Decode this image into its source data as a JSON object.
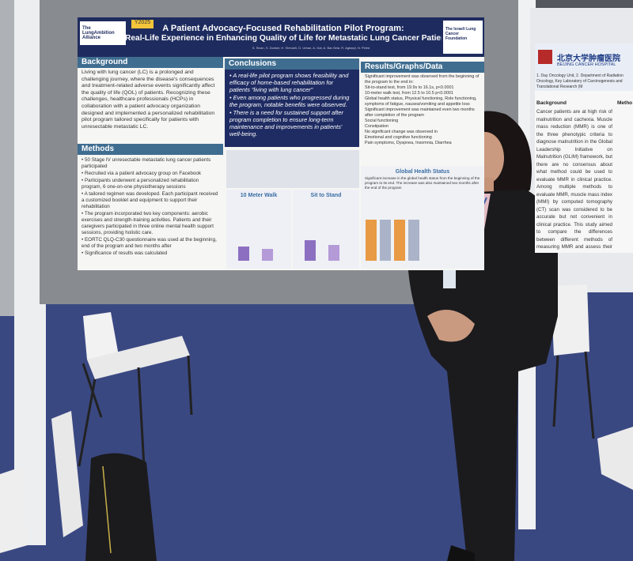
{
  "poster": {
    "tag": "Y2025",
    "logo_left": "The LungAmbition Alliance",
    "logo_right": "The Israeli Lung Cancer Foundation",
    "title_line1": "A Patient Advocacy-Focused Rehabilitation Pilot Program:",
    "title_line2": "Real-Life Experience in Enhancing Quality of Life for Metastatic Lung Cancer Patients.",
    "authors": "S. Sivan, S. Dunkel, H. Shmueli, D. Urban, A. Gat, A. Bar-Sela, R. Agbaryi, N. Peled",
    "background": {
      "heading": "Background",
      "text": "Living with lung cancer (LC) is a prolonged and challenging journey, where the disease's consequences and treatment-related adverse events significantly affect the quality of life (QOL) of patients. Recognizing these challenges, healthcare professionals (HCPs) in collaboration with a patient advocacy organization designed and implemented a personalized rehabilitation pilot program tailored specifically for patients with unresectable metastatic LC."
    },
    "methods": {
      "heading": "Methods",
      "items": [
        "50 Stage IV unresectable metastatic lung cancer patients participated",
        "Recruited via a patient advocacy group on Facebook",
        "Participants underwent a personalized rehabilitation program, 6 one-on-one physiotherapy sessions",
        "A tailored regimen was developed. Each participant received a customized booklet and equipment to support their rehabilitation",
        "The program incorporated two key components: aerobic exercises and strength-training activities. Patients and their caregivers participated in three online mental health support sessions, providing holistic care.",
        "EORTC QLQ-C30 questionnaire was used at the beginning, end of the program and two months after",
        "Significance of results was calculated"
      ]
    },
    "conclusions": {
      "heading": "Conclusions",
      "items": [
        "A real-life pilot program shows feasibility and efficacy of home-based rehabilitation for patients “living with lung cancer”",
        "Even among patients who progressed during the program, notable benefits were observed.",
        "There is a need for sustained support after program completion to ensure long-term maintenance and improvements in patients' well-being."
      ]
    },
    "results": {
      "heading": "Results/Graphs/Data",
      "lines": [
        "Significant improvement was observed from the beginning of the program to the end in:",
        "Sit-to-stand test, from 19.9s to 16.1s, p<0.0001",
        "10-meter walk test, from 12.5 to 10.5 p<0.0001",
        "Global health status, Physical functioning, Role functioning, symptoms of fatigue, nausea/vomiting and appetite loss",
        "Significant improvement was maintained even two months after completion of the program",
        "Social functioning",
        "Constipation",
        "No significant change was observed in",
        "Emotional and cognitive functioning",
        "Pain symptoms, Dyspnea, Insomnia, Diarrhea"
      ],
      "chart_title": "Global Health Status",
      "chart_note": "Significant increase in the global health status from the beginning of the program to its end. The increase was also maintained two months after the end of the program"
    },
    "chart_walk": "10 Meter Walk",
    "chart_sit": "Sit to Stand"
  },
  "neighbor_poster": {
    "hospital_cn": "北京大学肿瘤医院",
    "hospital_en": "BEIJING CANCER HOSPITAL",
    "affiliation": "1. Day Oncology Unit, 2. Department of Radiation Oncology, Key Laboratory of Carcinogenesis and Translational Research (M",
    "heading_background": "Background",
    "heading_methods": "Metho",
    "text": "Cancer patients are at high risk of malnutrition and cachexia. Muscle mass reduction (MMR) is one of the three phenotypic criteria to diagnose malnutrition in the Global Leadership Initiative on Malnutrition (GLIM) framework, but there are no consensus about what method could be used to evaluate MMR in clinical practice. Among multiple methods to evaluate MMR, muscle mass index (MMI) by computed tomography (CT) scan was considered to be accurate but not convenient in clinical practice. This study aimed to compare the differences between different methods of measuring MMR and assess their relevance to"
  }
}
